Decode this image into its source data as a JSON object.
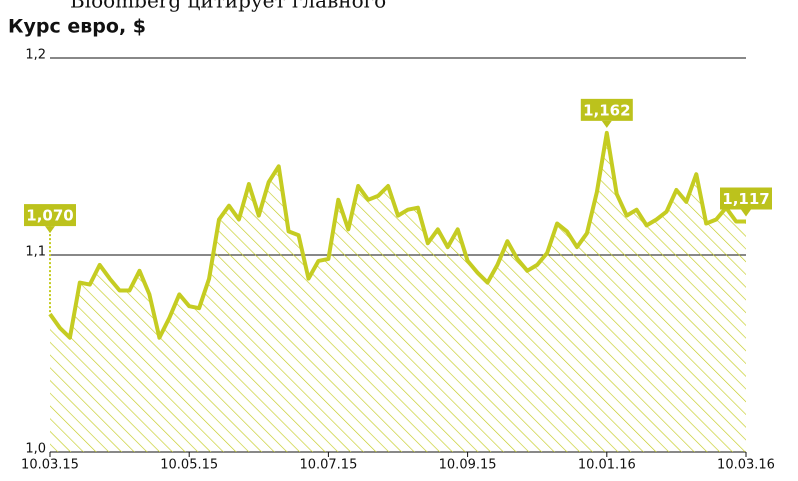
{
  "chart_data": {
    "type": "area",
    "header_text": "Bloomberg цитирует главного",
    "title": "Курс евро, $",
    "color": "#c5cc22",
    "hatch": true,
    "grid": true,
    "categories": [
      "10.03.15",
      null,
      null,
      null,
      null,
      null,
      null,
      null,
      null,
      null,
      null,
      null,
      null,
      null,
      "10.05.15",
      null,
      null,
      null,
      null,
      null,
      null,
      null,
      null,
      null,
      null,
      null,
      null,
      null,
      "10.07.15",
      null,
      null,
      null,
      null,
      null,
      null,
      null,
      null,
      null,
      null,
      null,
      null,
      null,
      "10.09.15",
      null,
      null,
      null,
      null,
      null,
      null,
      null,
      null,
      null,
      null,
      null,
      null,
      null,
      "10.01.16",
      null,
      null,
      null,
      null,
      null,
      null,
      null,
      null,
      null,
      null,
      null,
      null,
      null,
      "10.03.16"
    ],
    "values": [
      1.07,
      1.063,
      1.058,
      1.086,
      1.085,
      1.095,
      1.088,
      1.082,
      1.082,
      1.092,
      1.08,
      1.058,
      1.068,
      1.08,
      1.074,
      1.073,
      1.088,
      1.118,
      1.125,
      1.118,
      1.136,
      1.12,
      1.137,
      1.145,
      1.112,
      1.11,
      1.088,
      1.097,
      1.098,
      1.128,
      1.113,
      1.135,
      1.128,
      1.13,
      1.135,
      1.12,
      1.123,
      1.124,
      1.106,
      1.113,
      1.104,
      1.113,
      1.097,
      1.091,
      1.086,
      1.095,
      1.107,
      1.098,
      1.092,
      1.095,
      1.101,
      1.116,
      1.112,
      1.104,
      1.111,
      1.132,
      1.162,
      1.131,
      1.12,
      1.123,
      1.115,
      1.118,
      1.122,
      1.133,
      1.127,
      1.141,
      1.116,
      1.118,
      1.124,
      1.117,
      1.117
    ],
    "value_labels": [
      "1,070",
      null,
      null,
      null,
      null,
      null,
      null,
      null,
      null,
      null,
      null,
      null,
      null,
      null,
      null,
      null,
      null,
      null,
      null,
      null,
      null,
      null,
      null,
      null,
      null,
      null,
      null,
      null,
      null,
      null,
      null,
      null,
      null,
      null,
      null,
      null,
      null,
      null,
      null,
      null,
      null,
      null,
      null,
      null,
      null,
      null,
      null,
      null,
      null,
      null,
      null,
      null,
      null,
      null,
      null,
      null,
      "1,162",
      null,
      null,
      null,
      null,
      null,
      null,
      null,
      null,
      null,
      null,
      null,
      null,
      null,
      "1,117"
    ],
    "ylim": [
      1.0,
      1.2
    ],
    "yticks": [
      {
        "value": 1.0,
        "label": "1,0"
      },
      {
        "value": 1.1,
        "label": "1,1"
      },
      {
        "value": 1.2,
        "label": "1,2"
      }
    ]
  }
}
